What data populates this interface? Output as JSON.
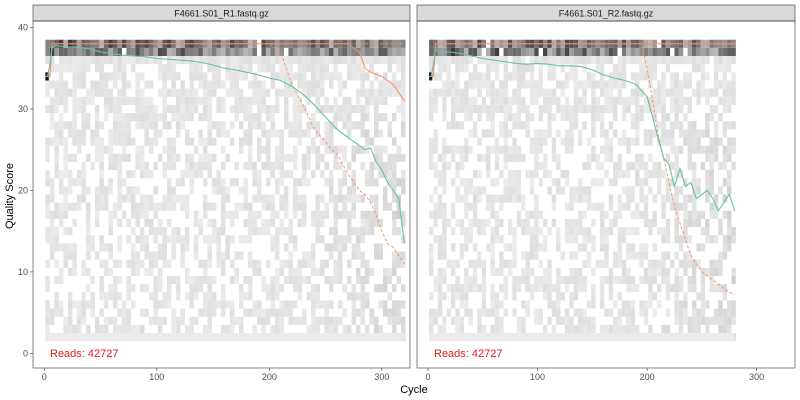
{
  "chart_data": {
    "type": "line",
    "xlabel": "Cycle",
    "ylabel": "Quality Score",
    "ylim": [
      0,
      40
    ],
    "y_ticks": [
      0,
      10,
      20,
      30,
      40
    ],
    "x_ticks": [
      0,
      100,
      200,
      300
    ],
    "grid": false,
    "colors": {
      "mean": "#66c2a5",
      "quartiles": "#fc8d62",
      "median": "#fc8d62",
      "heat_dark": "#000000",
      "heat_light": "#f2f2f2",
      "reads_label": "#e41a1c",
      "strip_bg": "#d9d9d9"
    },
    "panels": [
      {
        "title": "F4661.S01_R1.fastq.gz",
        "xlim": [
          -10,
          325
        ],
        "reads_label": "Reads:  42727",
        "mean": {
          "x": [
            1,
            3,
            5,
            7,
            10,
            20,
            30,
            40,
            50,
            60,
            70,
            80,
            90,
            100,
            110,
            120,
            130,
            140,
            150,
            160,
            170,
            180,
            190,
            200,
            210,
            220,
            230,
            240,
            250,
            260,
            270,
            280,
            285,
            290,
            295,
            300,
            305,
            310,
            315,
            320
          ],
          "y": [
            34,
            34,
            35.5,
            37.5,
            37.8,
            37.6,
            37.6,
            37.4,
            37,
            36.8,
            36.6,
            36.5,
            36.4,
            36.2,
            36.1,
            36,
            35.9,
            35.7,
            35.4,
            35,
            34.8,
            34.5,
            34.2,
            33.8,
            33.5,
            32.8,
            31.8,
            30.5,
            29,
            27.5,
            26.5,
            25.5,
            25,
            25.2,
            23.5,
            22.5,
            21,
            20,
            19,
            13.5
          ]
        },
        "median": {
          "x": [
            1,
            5,
            7,
            250,
            265,
            270,
            275,
            280,
            285,
            290,
            300,
            310,
            320
          ],
          "y": [
            34,
            34,
            38,
            38,
            38,
            38,
            37.5,
            37,
            35,
            34.5,
            34,
            33,
            31
          ]
        },
        "q25": {
          "x": [
            1,
            5,
            7,
            200,
            210,
            220,
            230,
            240,
            250,
            255,
            260,
            270,
            280,
            285,
            290,
            295,
            300,
            305,
            310,
            315,
            320
          ],
          "y": [
            34,
            34,
            38,
            38,
            37,
            33,
            30.5,
            27.5,
            26,
            25,
            24.5,
            22,
            20,
            19.5,
            18.5,
            17,
            15,
            13.5,
            13,
            12,
            11
          ]
        },
        "q75": {
          "x": [
            1,
            5,
            7,
            280,
            320
          ],
          "y": [
            34,
            34,
            38,
            38,
            38
          ]
        }
      },
      {
        "title": "F4661.S01_R2.fastq.gz",
        "xlim": [
          -10,
          335
        ],
        "reads_label": "Reads:  42727",
        "mean": {
          "x": [
            1,
            3,
            5,
            7,
            10,
            20,
            30,
            40,
            50,
            60,
            70,
            80,
            90,
            100,
            110,
            120,
            130,
            140,
            150,
            160,
            170,
            180,
            190,
            200,
            205,
            210,
            215,
            220,
            225,
            230,
            235,
            240,
            245,
            250,
            255,
            260,
            265,
            270,
            275,
            280
          ],
          "y": [
            34,
            34,
            35.5,
            37.3,
            37,
            37,
            36.8,
            36.5,
            36.2,
            36,
            35.8,
            35.6,
            35.5,
            35.6,
            35.5,
            35.3,
            35.3,
            35.2,
            34.8,
            34.2,
            33.8,
            33.5,
            33,
            31.5,
            29,
            26.5,
            24,
            23.2,
            20.5,
            22.7,
            20.5,
            21,
            19,
            19.5,
            20,
            19,
            17.5,
            18.5,
            19.5,
            17.5
          ]
        },
        "median": {
          "x": [
            1,
            5,
            7,
            240,
            280
          ],
          "y": [
            34,
            34,
            38,
            38,
            38
          ]
        },
        "q25": {
          "x": [
            1,
            5,
            7,
            195,
            200,
            205,
            210,
            215,
            220,
            225,
            230,
            235,
            240,
            245,
            250,
            255,
            260,
            265,
            270,
            275,
            280
          ],
          "y": [
            34,
            34,
            38,
            38,
            35,
            31,
            27,
            24,
            21,
            18,
            16,
            14,
            12,
            11,
            10,
            9.5,
            9,
            8.5,
            8,
            7.5,
            7.2
          ]
        },
        "q75": {
          "x": [
            1,
            5,
            7,
            280
          ],
          "y": [
            34,
            34,
            38,
            38
          ]
        }
      }
    ]
  }
}
